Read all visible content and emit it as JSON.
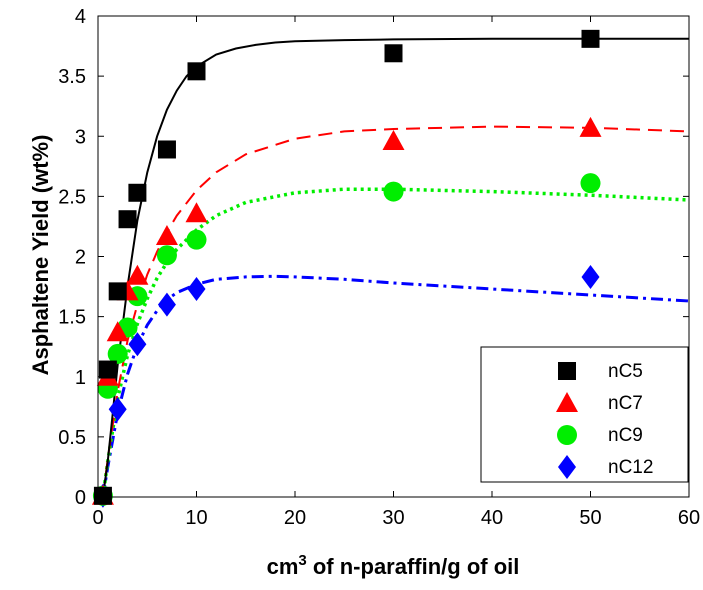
{
  "chart_data": {
    "type": "scatter",
    "xlabel_main": "cm",
    "xlabel_sup": "3",
    "xlabel_rest": " of n-paraffin/g of oil",
    "ylabel": "Asphaltene Yield (wt%)",
    "xlim": [
      0,
      60
    ],
    "ylim": [
      0,
      4
    ],
    "xticks": [
      0,
      10,
      20,
      30,
      40,
      50,
      60
    ],
    "yticks": [
      0,
      0.5,
      1,
      1.5,
      2,
      2.5,
      3,
      3.5,
      4
    ],
    "ytick_labels": [
      "0",
      "0.5",
      "1",
      "1.5",
      "2",
      "2.5",
      "3",
      "3.5",
      "4"
    ],
    "grid": false,
    "legend_position": "bottom-right",
    "series": [
      {
        "name": "nC5",
        "color": "#000000",
        "marker": "square",
        "line": "solid",
        "x": [
          0.5,
          1,
          2,
          3,
          4,
          7,
          10,
          30,
          50
        ],
        "y": [
          0.01,
          1.06,
          1.71,
          2.31,
          2.53,
          2.89,
          3.54,
          3.69,
          3.81
        ],
        "fit_x": [
          0.5,
          1,
          1.5,
          2,
          3,
          4,
          5,
          6,
          7,
          8,
          9,
          10,
          12,
          14,
          16,
          18,
          20,
          25,
          30,
          40,
          50,
          60
        ],
        "fit_y": [
          0.0,
          0.3,
          0.7,
          1.1,
          1.75,
          2.3,
          2.7,
          3.0,
          3.22,
          3.38,
          3.5,
          3.58,
          3.68,
          3.73,
          3.76,
          3.78,
          3.79,
          3.8,
          3.805,
          3.81,
          3.81,
          3.81
        ]
      },
      {
        "name": "nC7",
        "color": "#ff0000",
        "marker": "triangle",
        "line": "dashed",
        "x": [
          0.5,
          1,
          2,
          3,
          4,
          7,
          10,
          30,
          50
        ],
        "y": [
          0.01,
          1.0,
          1.37,
          1.71,
          1.84,
          2.17,
          2.36,
          2.96,
          3.07
        ],
        "fit_x": [
          0.5,
          1,
          2,
          3,
          4,
          5,
          6,
          7,
          8,
          10,
          12,
          15,
          20,
          25,
          30,
          40,
          50,
          60
        ],
        "fit_y": [
          0.0,
          0.32,
          0.88,
          1.3,
          1.6,
          1.85,
          2.04,
          2.2,
          2.34,
          2.55,
          2.7,
          2.85,
          2.98,
          3.04,
          3.06,
          3.08,
          3.07,
          3.04
        ]
      },
      {
        "name": "nC9",
        "color": "#00ee00",
        "marker": "circle",
        "line": "dotted",
        "x": [
          0.5,
          1,
          2,
          3,
          4,
          7,
          10,
          30,
          50
        ],
        "y": [
          0.01,
          0.9,
          1.19,
          1.41,
          1.67,
          2.01,
          2.14,
          2.54,
          2.61
        ],
        "fit_x": [
          0.5,
          1,
          2,
          3,
          4,
          5,
          6,
          7,
          8,
          10,
          12,
          15,
          20,
          25,
          30,
          40,
          50,
          60
        ],
        "fit_y": [
          0.0,
          0.3,
          0.82,
          1.18,
          1.44,
          1.65,
          1.82,
          1.95,
          2.06,
          2.22,
          2.34,
          2.45,
          2.53,
          2.56,
          2.56,
          2.54,
          2.51,
          2.47
        ]
      },
      {
        "name": "nC12",
        "color": "#0000ff",
        "marker": "diamond",
        "line": "dashdot",
        "x": [
          0.5,
          2,
          4,
          7,
          10,
          50
        ],
        "y": [
          0.01,
          0.73,
          1.27,
          1.6,
          1.73,
          1.83
        ],
        "fit_x": [
          0.5,
          1,
          2,
          3,
          4,
          5,
          6,
          7,
          8,
          10,
          12,
          15,
          18,
          20,
          25,
          30,
          40,
          50,
          60
        ],
        "fit_y": [
          0.0,
          0.25,
          0.7,
          1.02,
          1.26,
          1.43,
          1.55,
          1.64,
          1.7,
          1.77,
          1.81,
          1.83,
          1.835,
          1.83,
          1.81,
          1.78,
          1.73,
          1.68,
          1.63
        ]
      }
    ]
  }
}
